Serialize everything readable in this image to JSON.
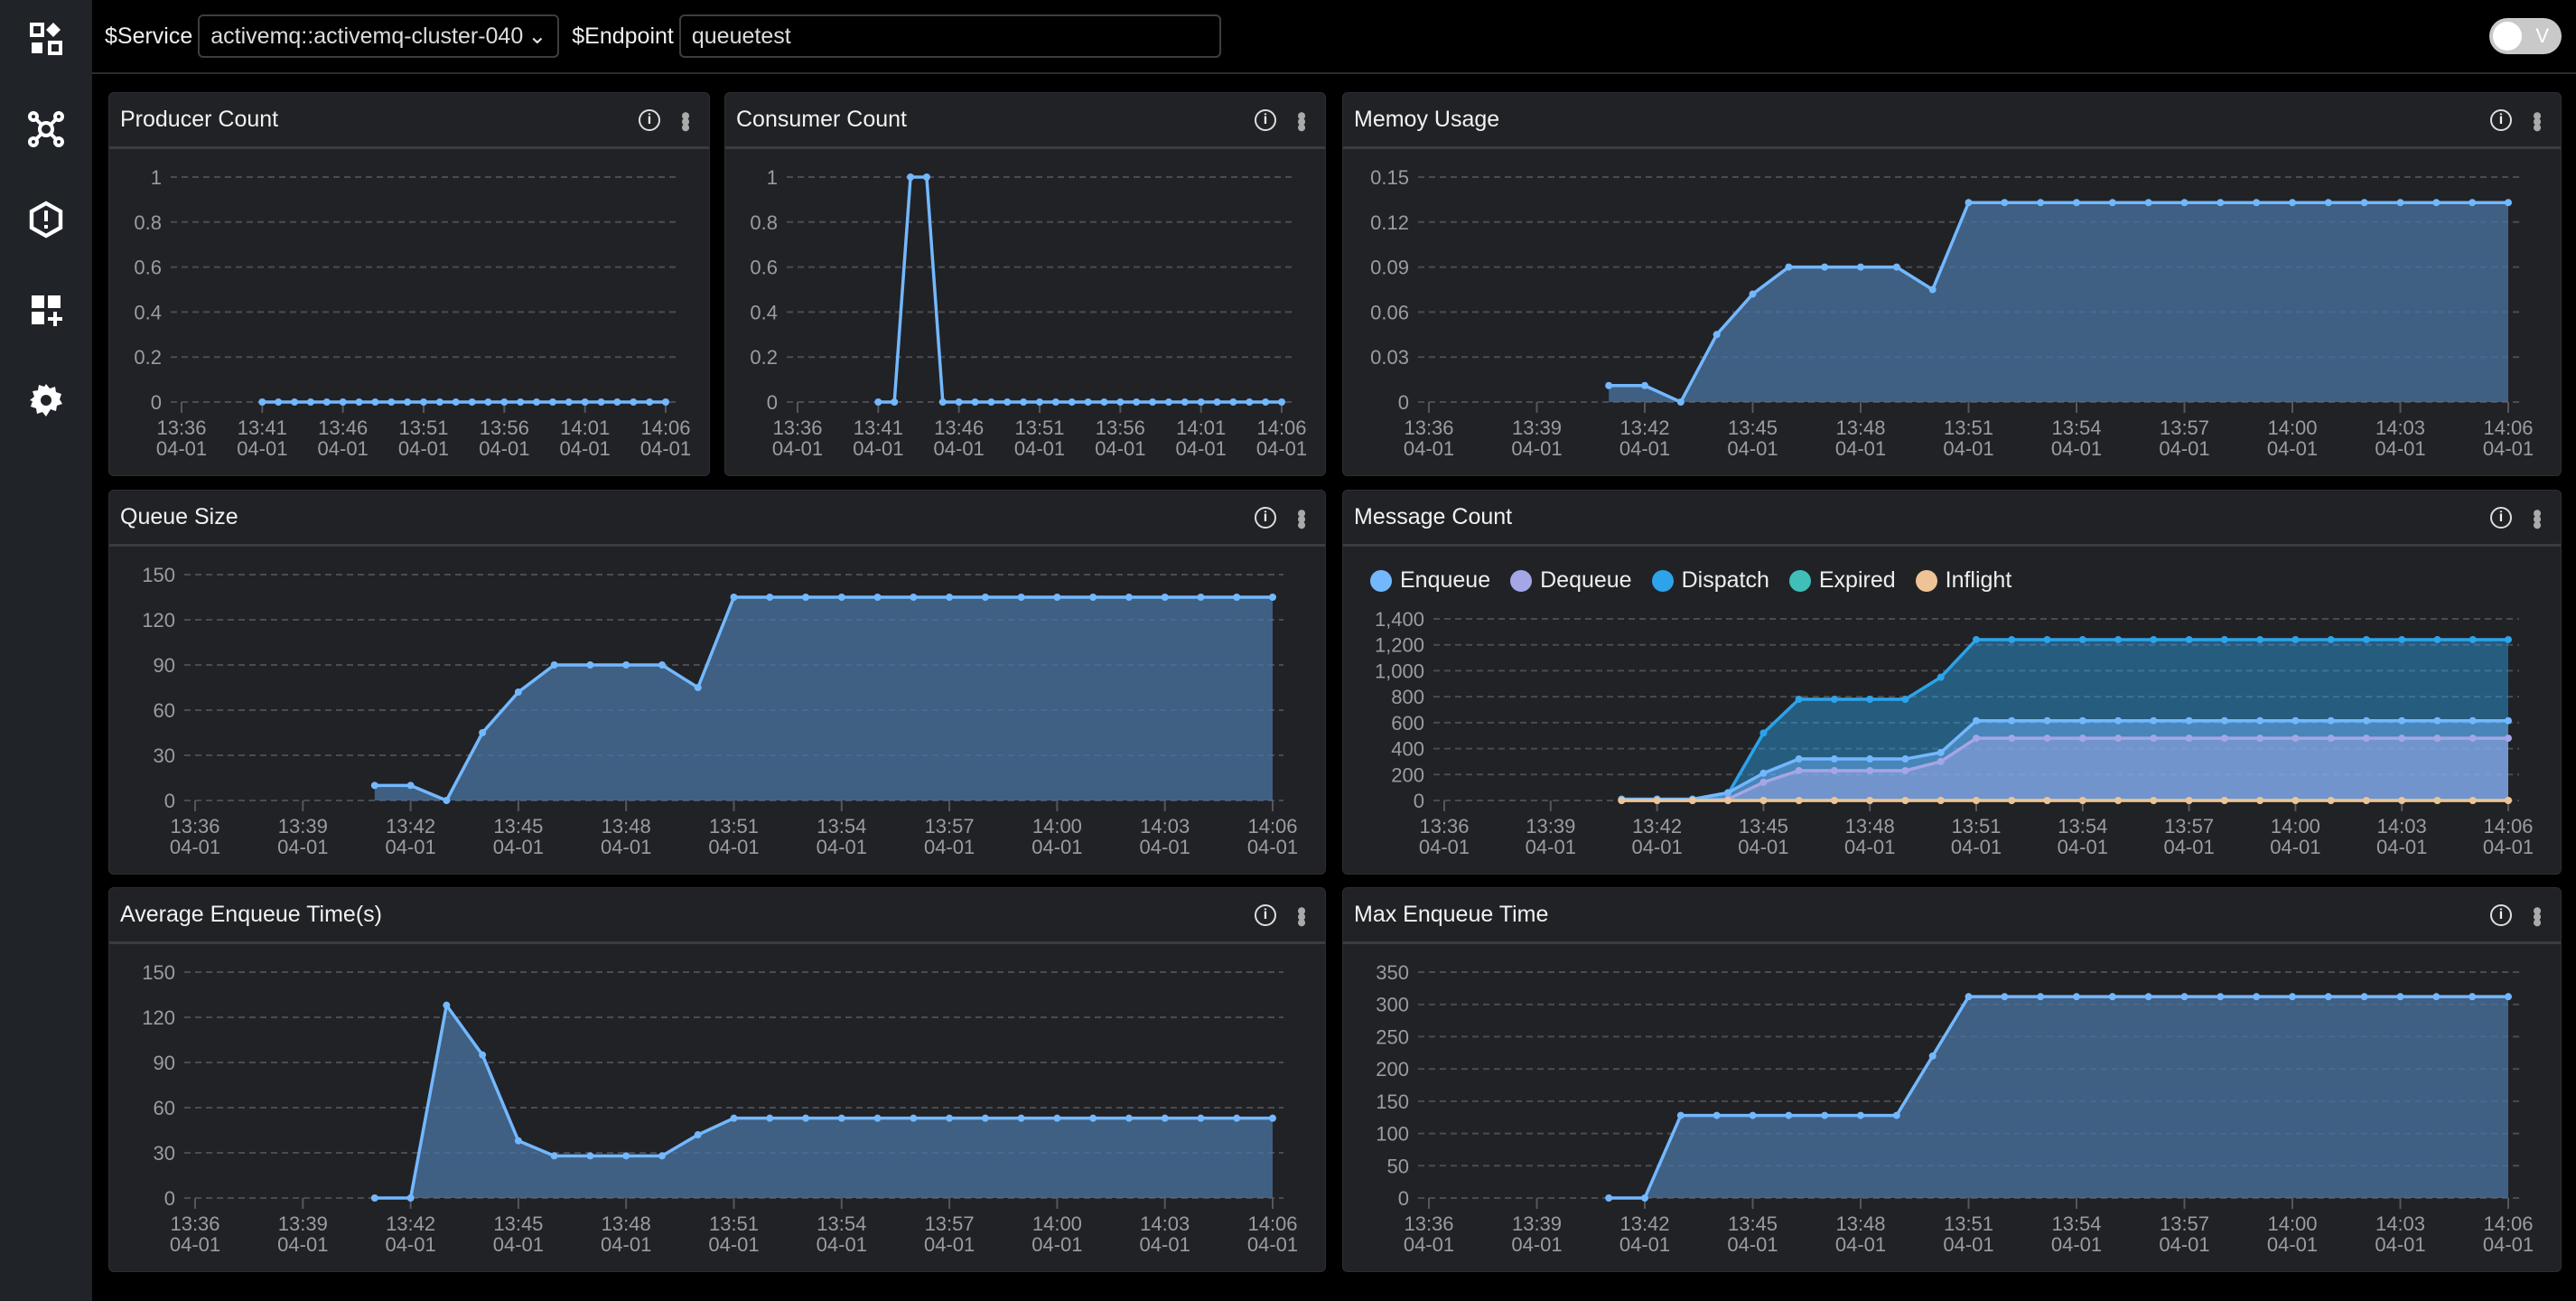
{
  "sidebar": {
    "items": [
      {
        "icon": "dashboard-icon"
      },
      {
        "icon": "topology-icon"
      },
      {
        "icon": "alert-icon"
      },
      {
        "icon": "add-widget-icon"
      },
      {
        "icon": "settings-icon"
      }
    ]
  },
  "topbar": {
    "service_label": "$Service",
    "service_value": "activemq::activemq-cluster-040",
    "endpoint_label": "$Endpoint",
    "endpoint_value": "queuetest",
    "toggle_label": "V"
  },
  "colors": {
    "line": "#73b8ff",
    "fill": "#4a6f97",
    "enqueue": "#73b8ff",
    "dequeue": "#a5a6e6",
    "dispatch": "#2ca3ea",
    "expired": "#3fbfb8",
    "inflight": "#eec496"
  },
  "panels": {
    "producer": {
      "title": "Producer Count",
      "ymax": 1,
      "yticks": [
        0,
        0.2,
        0.4,
        0.6,
        0.8,
        1
      ],
      "area": false,
      "xticks": [
        "13:36",
        "13:41",
        "13:46",
        "13:51",
        "13:56",
        "14:01",
        "14:06"
      ],
      "date": "04-01",
      "x": [
        "13:41",
        "13:42",
        "13:43",
        "13:44",
        "13:45",
        "13:46",
        "13:47",
        "13:48",
        "13:49",
        "13:50",
        "13:51",
        "13:52",
        "13:53",
        "13:54",
        "13:55",
        "13:56",
        "13:57",
        "13:58",
        "13:59",
        "14:00",
        "14:01",
        "14:02",
        "14:03",
        "14:04",
        "14:05",
        "14:06"
      ],
      "series": [
        {
          "color": "#73b8ff",
          "values": [
            0,
            0,
            0,
            0,
            0,
            0,
            0,
            0,
            0,
            0,
            0,
            0,
            0,
            0,
            0,
            0,
            0,
            0,
            0,
            0,
            0,
            0,
            0,
            0,
            0,
            0
          ]
        }
      ]
    },
    "consumer": {
      "title": "Consumer Count",
      "ymax": 1,
      "yticks": [
        0,
        0.2,
        0.4,
        0.6,
        0.8,
        1
      ],
      "area": false,
      "xticks": [
        "13:36",
        "13:41",
        "13:46",
        "13:51",
        "13:56",
        "14:01",
        "14:06"
      ],
      "date": "04-01",
      "x": [
        "13:41",
        "13:42",
        "13:43",
        "13:44",
        "13:45",
        "13:46",
        "13:47",
        "13:48",
        "13:49",
        "13:50",
        "13:51",
        "13:52",
        "13:53",
        "13:54",
        "13:55",
        "13:56",
        "13:57",
        "13:58",
        "13:59",
        "14:00",
        "14:01",
        "14:02",
        "14:03",
        "14:04",
        "14:05",
        "14:06"
      ],
      "series": [
        {
          "color": "#73b8ff",
          "values": [
            0,
            0,
            1,
            1,
            0,
            0,
            0,
            0,
            0,
            0,
            0,
            0,
            0,
            0,
            0,
            0,
            0,
            0,
            0,
            0,
            0,
            0,
            0,
            0,
            0,
            0
          ]
        }
      ]
    },
    "memory": {
      "title": "Memoy Usage",
      "ymax": 0.15,
      "yticks": [
        0,
        0.03,
        0.06,
        0.09,
        0.12,
        0.15
      ],
      "area": true,
      "xticks": [
        "13:36",
        "13:39",
        "13:42",
        "13:45",
        "13:48",
        "13:51",
        "13:54",
        "13:57",
        "14:00",
        "14:03",
        "14:06"
      ],
      "date": "04-01",
      "x": [
        "13:41",
        "13:42",
        "13:43",
        "13:44",
        "13:45",
        "13:46",
        "13:47",
        "13:48",
        "13:49",
        "13:50",
        "13:51",
        "13:52",
        "13:53",
        "13:54",
        "13:55",
        "13:56",
        "13:57",
        "13:58",
        "13:59",
        "14:00",
        "14:01",
        "14:02",
        "14:03",
        "14:04",
        "14:05",
        "14:06"
      ],
      "series": [
        {
          "color": "#73b8ff",
          "values": [
            0.011,
            0.011,
            0,
            0.045,
            0.072,
            0.09,
            0.09,
            0.09,
            0.09,
            0.075,
            0.133,
            0.133,
            0.133,
            0.133,
            0.133,
            0.133,
            0.133,
            0.133,
            0.133,
            0.133,
            0.133,
            0.133,
            0.133,
            0.133,
            0.133,
            0.133
          ]
        }
      ]
    },
    "queue": {
      "title": "Queue Size",
      "ymax": 150,
      "yticks": [
        0,
        30,
        60,
        90,
        120,
        150
      ],
      "area": true,
      "xticks": [
        "13:36",
        "13:39",
        "13:42",
        "13:45",
        "13:48",
        "13:51",
        "13:54",
        "13:57",
        "14:00",
        "14:03",
        "14:06"
      ],
      "date": "04-01",
      "x": [
        "13:41",
        "13:42",
        "13:43",
        "13:44",
        "13:45",
        "13:46",
        "13:47",
        "13:48",
        "13:49",
        "13:50",
        "13:51",
        "13:52",
        "13:53",
        "13:54",
        "13:55",
        "13:56",
        "13:57",
        "13:58",
        "13:59",
        "14:00",
        "14:01",
        "14:02",
        "14:03",
        "14:04",
        "14:05",
        "14:06"
      ],
      "series": [
        {
          "color": "#73b8ff",
          "values": [
            10,
            10,
            0,
            45,
            72,
            90,
            90,
            90,
            90,
            75,
            135,
            135,
            135,
            135,
            135,
            135,
            135,
            135,
            135,
            135,
            135,
            135,
            135,
            135,
            135,
            135
          ]
        }
      ]
    },
    "message": {
      "title": "Message Count",
      "ymax": 1400,
      "yticks": [
        0,
        200,
        400,
        600,
        800,
        1000,
        1200,
        1400
      ],
      "ytick_labels": [
        "0",
        "200",
        "400",
        "600",
        "800",
        "1,000",
        "1,200",
        "1,400"
      ],
      "area": true,
      "xticks": [
        "13:36",
        "13:39",
        "13:42",
        "13:45",
        "13:48",
        "13:51",
        "13:54",
        "13:57",
        "14:00",
        "14:03",
        "14:06"
      ],
      "date": "04-01",
      "x": [
        "13:41",
        "13:42",
        "13:43",
        "13:44",
        "13:45",
        "13:46",
        "13:47",
        "13:48",
        "13:49",
        "13:50",
        "13:51",
        "13:52",
        "13:53",
        "13:54",
        "13:55",
        "13:56",
        "13:57",
        "13:58",
        "13:59",
        "14:00",
        "14:01",
        "14:02",
        "14:03",
        "14:04",
        "14:05",
        "14:06"
      ],
      "series": [
        {
          "name": "Dispatch",
          "color": "#2ca3ea",
          "values": [
            10,
            10,
            10,
            50,
            520,
            780,
            780,
            780,
            780,
            950,
            1240,
            1240,
            1240,
            1240,
            1240,
            1240,
            1240,
            1240,
            1240,
            1240,
            1240,
            1240,
            1240,
            1240,
            1240,
            1240
          ]
        },
        {
          "name": "Enqueue",
          "color": "#73b8ff",
          "values": [
            10,
            10,
            10,
            60,
            210,
            320,
            320,
            320,
            320,
            370,
            615,
            615,
            615,
            615,
            615,
            615,
            615,
            615,
            615,
            615,
            615,
            615,
            615,
            615,
            615,
            615
          ]
        },
        {
          "name": "Dequeue",
          "color": "#a5a6e6",
          "values": [
            0,
            0,
            0,
            10,
            140,
            230,
            230,
            230,
            230,
            300,
            480,
            480,
            480,
            480,
            480,
            480,
            480,
            480,
            480,
            480,
            480,
            480,
            480,
            480,
            480,
            480
          ]
        },
        {
          "name": "Expired",
          "color": "#3fbfb8",
          "values": [
            0,
            0,
            0,
            0,
            0,
            0,
            0,
            0,
            0,
            0,
            0,
            0,
            0,
            0,
            0,
            0,
            0,
            0,
            0,
            0,
            0,
            0,
            0,
            0,
            0,
            0
          ]
        },
        {
          "name": "Inflight",
          "color": "#eec496",
          "values": [
            0,
            0,
            0,
            0,
            0,
            0,
            0,
            0,
            0,
            0,
            0,
            0,
            0,
            0,
            0,
            0,
            0,
            0,
            0,
            0,
            0,
            0,
            0,
            0,
            0,
            0
          ]
        }
      ],
      "legend": [
        "Enqueue",
        "Dequeue",
        "Dispatch",
        "Expired",
        "Inflight"
      ]
    },
    "avg": {
      "title": "Average Enqueue Time(s)",
      "ymax": 150,
      "yticks": [
        0,
        30,
        60,
        90,
        120,
        150
      ],
      "area": true,
      "xticks": [
        "13:36",
        "13:39",
        "13:42",
        "13:45",
        "13:48",
        "13:51",
        "13:54",
        "13:57",
        "14:00",
        "14:03",
        "14:06"
      ],
      "date": "04-01",
      "x": [
        "13:41",
        "13:42",
        "13:43",
        "13:44",
        "13:45",
        "13:46",
        "13:47",
        "13:48",
        "13:49",
        "13:50",
        "13:51",
        "13:52",
        "13:53",
        "13:54",
        "13:55",
        "13:56",
        "13:57",
        "13:58",
        "13:59",
        "14:00",
        "14:01",
        "14:02",
        "14:03",
        "14:04",
        "14:05",
        "14:06"
      ],
      "series": [
        {
          "color": "#73b8ff",
          "values": [
            0,
            0,
            128,
            95,
            38,
            28,
            28,
            28,
            28,
            42,
            53,
            53,
            53,
            53,
            53,
            53,
            53,
            53,
            53,
            53,
            53,
            53,
            53,
            53,
            53,
            53
          ]
        }
      ]
    },
    "max": {
      "title": "Max Enqueue Time",
      "ymax": 350,
      "yticks": [
        0,
        50,
        100,
        150,
        200,
        250,
        300,
        350
      ],
      "area": true,
      "xticks": [
        "13:36",
        "13:39",
        "13:42",
        "13:45",
        "13:48",
        "13:51",
        "13:54",
        "13:57",
        "14:00",
        "14:03",
        "14:06"
      ],
      "date": "04-01",
      "x": [
        "13:41",
        "13:42",
        "13:43",
        "13:44",
        "13:45",
        "13:46",
        "13:47",
        "13:48",
        "13:49",
        "13:50",
        "13:51",
        "13:52",
        "13:53",
        "13:54",
        "13:55",
        "13:56",
        "13:57",
        "13:58",
        "13:59",
        "14:00",
        "14:01",
        "14:02",
        "14:03",
        "14:04",
        "14:05",
        "14:06"
      ],
      "series": [
        {
          "color": "#73b8ff",
          "values": [
            0,
            0,
            128,
            128,
            128,
            128,
            128,
            128,
            128,
            220,
            312,
            312,
            312,
            312,
            312,
            312,
            312,
            312,
            312,
            312,
            312,
            312,
            312,
            312,
            312,
            312
          ]
        }
      ]
    }
  }
}
